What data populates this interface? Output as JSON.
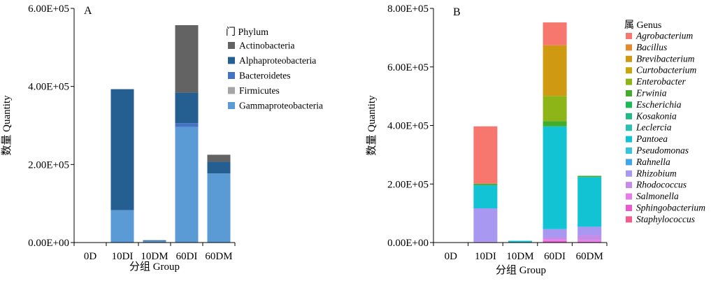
{
  "chart_data": [
    {
      "type": "bar",
      "stacked": true,
      "panel_label": "A",
      "categories": [
        "0D",
        "10DI",
        "10DM",
        "60DI",
        "60DM"
      ],
      "xlabel": "分组 Group",
      "ylabel": "数量 Quantity",
      "ylim": [
        0,
        600000
      ],
      "ytick_values": [
        0,
        200000,
        400000,
        600000
      ],
      "ytick_labels": [
        "0.00E+00",
        "2.00E+05",
        "4.00E+05",
        "6.00E+05"
      ],
      "legend_title": "门 Phylum",
      "legend_position": "top-right",
      "legend_order": [
        4,
        3,
        2,
        1,
        0
      ],
      "grid": false,
      "series": [
        {
          "name": "Gammaproteobacteria",
          "color": "#5b9bd5",
          "values": [
            0,
            83000,
            4000,
            296000,
            177000
          ]
        },
        {
          "name": "Firmicutes",
          "color": "#a5a5a5",
          "values": [
            0,
            0,
            0,
            0,
            0
          ]
        },
        {
          "name": "Bacteroidetes",
          "color": "#4472c4",
          "values": [
            0,
            0,
            0,
            10000,
            0
          ]
        },
        {
          "name": "Alphaproteobacteria",
          "color": "#255e91",
          "values": [
            0,
            310000,
            2000,
            78000,
            30000
          ]
        },
        {
          "name": "Actinobacteria",
          "color": "#636363",
          "values": [
            0,
            0,
            0,
            173000,
            18000
          ]
        }
      ]
    },
    {
      "type": "bar",
      "stacked": true,
      "panel_label": "B",
      "categories": [
        "0D",
        "10DI",
        "10DM",
        "60DI",
        "60DM"
      ],
      "xlabel": "分组 Group",
      "ylabel": "数量 Quantity",
      "ylim": [
        0,
        800000
      ],
      "ytick_values": [
        0,
        200000,
        400000,
        600000,
        800000
      ],
      "ytick_labels": [
        "0.00E+00",
        "2.00E+05",
        "4.00E+05",
        "6.00E+05",
        "8.00E+05"
      ],
      "legend_title": "属 Genus",
      "legend_position": "right",
      "legend_order": [
        16,
        15,
        14,
        13,
        12,
        11,
        10,
        9,
        8,
        7,
        6,
        5,
        4,
        3,
        2,
        1,
        0
      ],
      "grid": false,
      "series": [
        {
          "name": "Staphylococcus",
          "color": "#f25c8f",
          "values": [
            0,
            0,
            0,
            0,
            0
          ]
        },
        {
          "name": "Sphingobacterium",
          "color": "#ee58cf",
          "values": [
            0,
            0,
            0,
            5000,
            3000
          ]
        },
        {
          "name": "Salmonella",
          "color": "#e87ce6",
          "values": [
            0,
            0,
            0,
            5000,
            5000
          ]
        },
        {
          "name": "Rhodococcus",
          "color": "#c68be6",
          "values": [
            0,
            3000,
            0,
            8000,
            17000
          ]
        },
        {
          "name": "Rhizobium",
          "color": "#a898f2",
          "values": [
            0,
            114000,
            0,
            28000,
            29000
          ]
        },
        {
          "name": "Rahnella",
          "color": "#3fa7e8",
          "values": [
            0,
            0,
            0,
            0,
            0
          ]
        },
        {
          "name": "Pseudomonas",
          "color": "#35c4dc",
          "values": [
            0,
            0,
            0,
            0,
            0
          ]
        },
        {
          "name": "Pantoea",
          "color": "#12c3d3",
          "values": [
            0,
            79000,
            6000,
            351000,
            170000
          ]
        },
        {
          "name": "Leclercia",
          "color": "#2ac1b3",
          "values": [
            0,
            0,
            0,
            0,
            0
          ]
        },
        {
          "name": "Kosakonia",
          "color": "#21b98a",
          "values": [
            0,
            0,
            0,
            0,
            0
          ]
        },
        {
          "name": "Escherichia",
          "color": "#1db954",
          "values": [
            0,
            0,
            0,
            0,
            0
          ]
        },
        {
          "name": "Erwinia",
          "color": "#43ad2b",
          "values": [
            0,
            5000,
            0,
            18000,
            4000
          ]
        },
        {
          "name": "Enterobacter",
          "color": "#8eb518",
          "values": [
            0,
            0,
            0,
            86000,
            0
          ]
        },
        {
          "name": "Curtobacterium",
          "color": "#c7a70b",
          "values": [
            0,
            0,
            0,
            0,
            0
          ]
        },
        {
          "name": "Brevibacterium",
          "color": "#cf9a12",
          "values": [
            0,
            0,
            0,
            173000,
            0
          ]
        },
        {
          "name": "Bacillus",
          "color": "#e58a2a",
          "values": [
            0,
            0,
            0,
            0,
            0
          ]
        },
        {
          "name": "Agrobacterium",
          "color": "#f7766e",
          "values": [
            0,
            196000,
            0,
            78000,
            0
          ]
        }
      ]
    }
  ]
}
